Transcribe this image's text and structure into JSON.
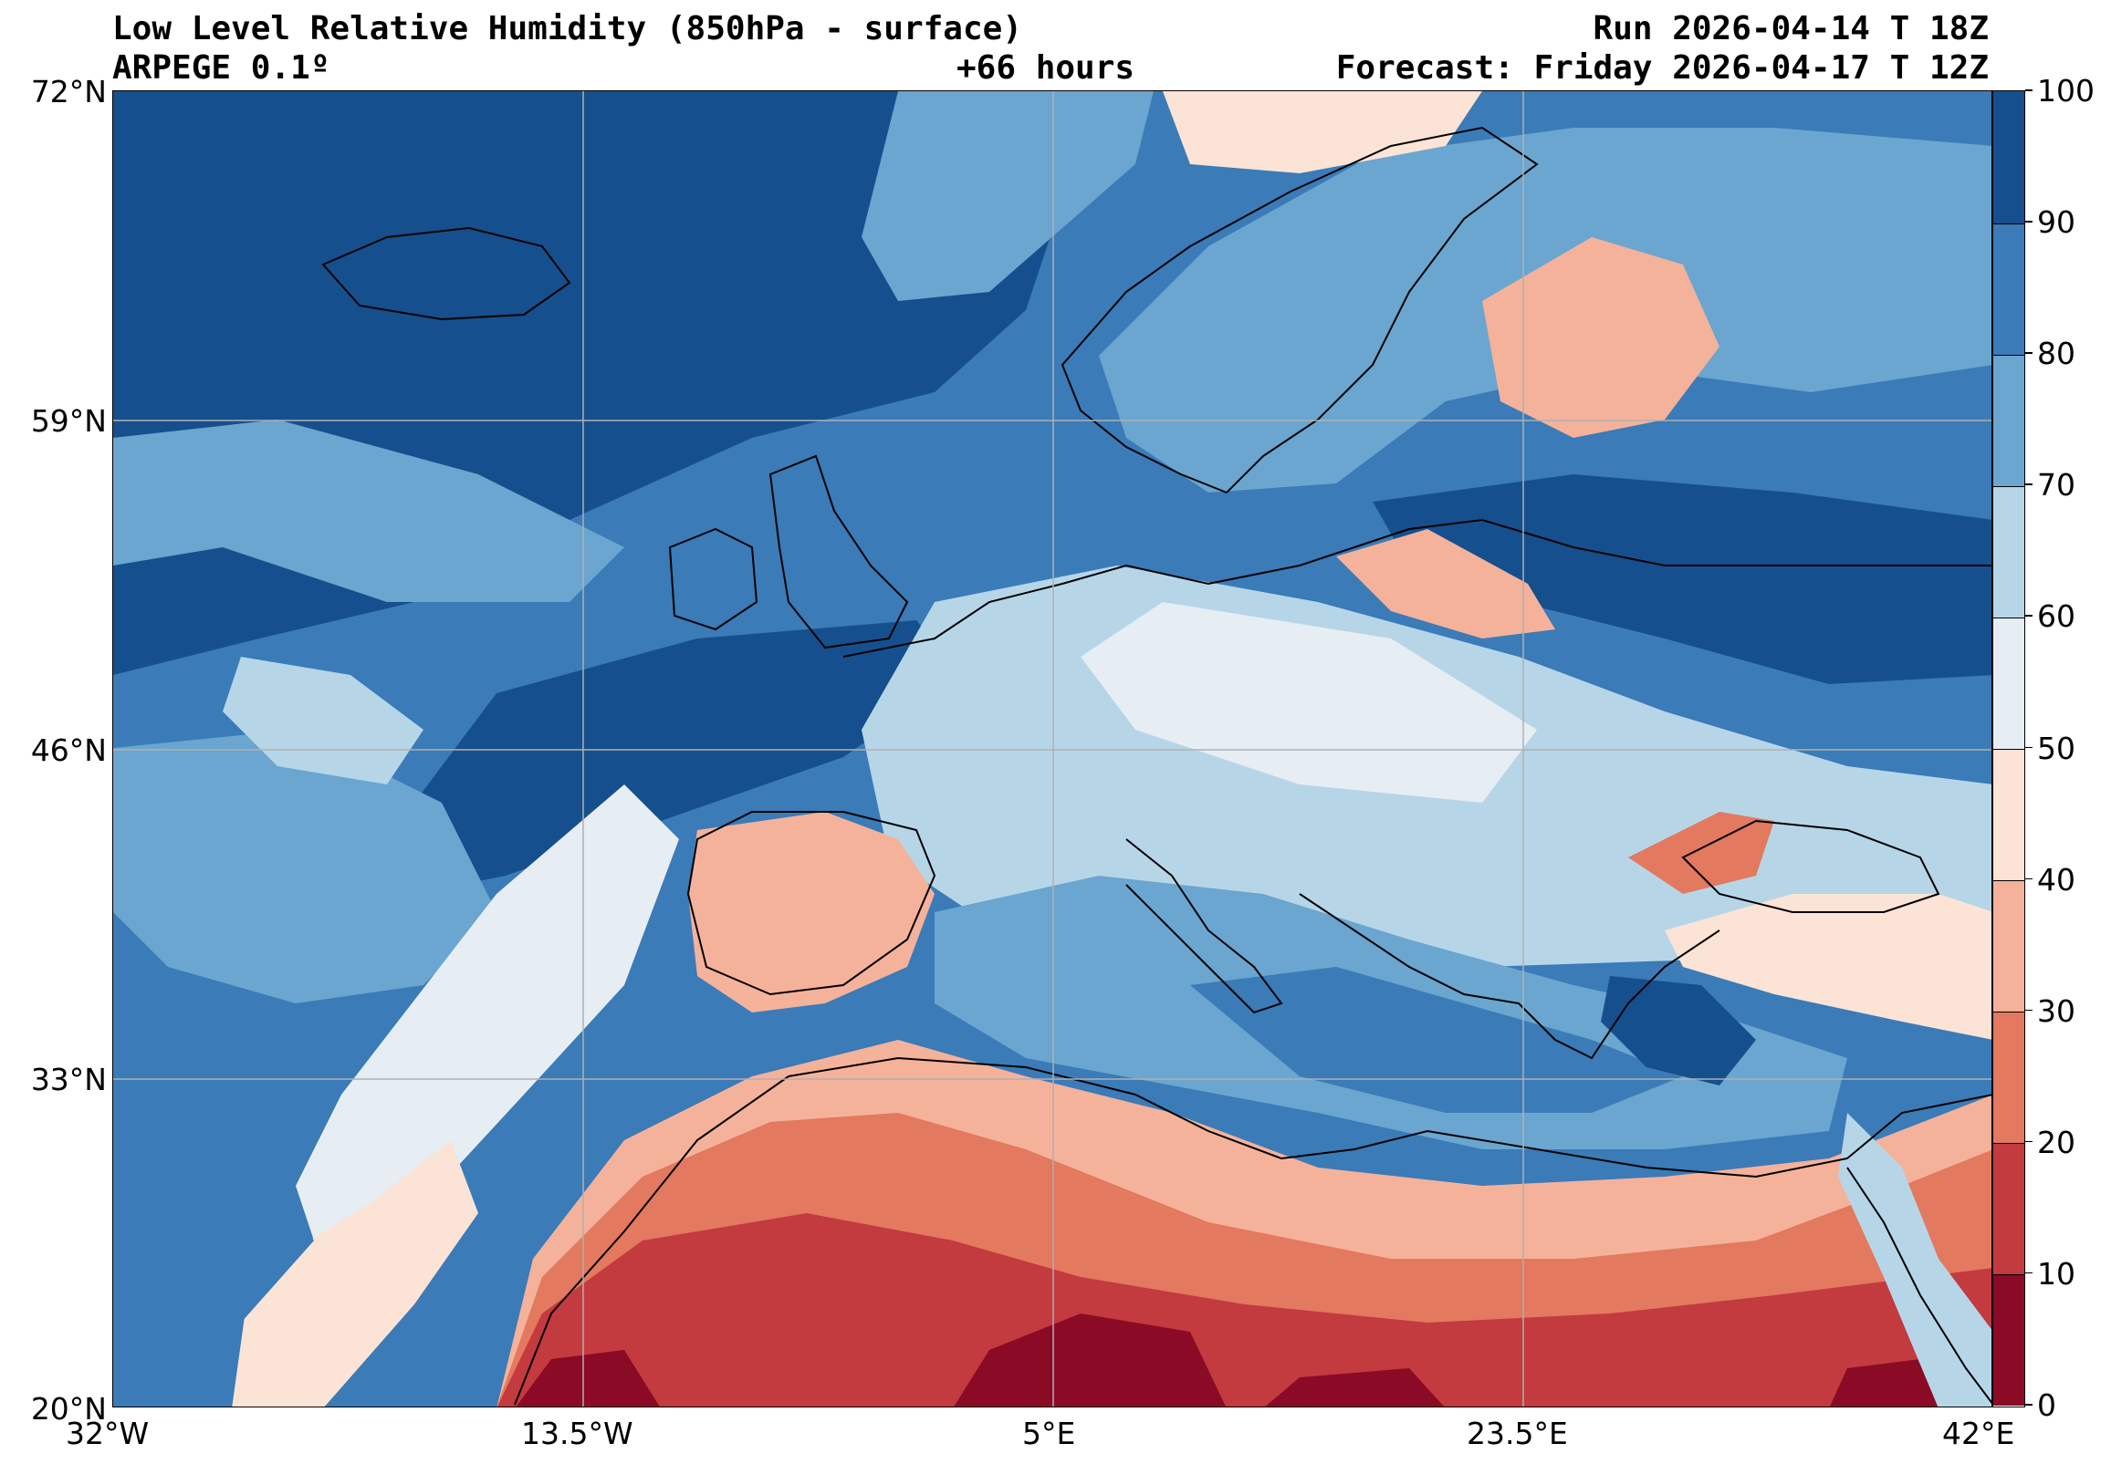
{
  "header": {
    "title": "Low Level Relative Humidity (850hPa - surface)",
    "model": "ARPEGE 0.1º",
    "lead_time": "+66 hours",
    "run": "Run 2026-04-14 T 18Z",
    "forecast": "Forecast: Friday 2026-04-17 T 12Z"
  },
  "map": {
    "lon_range": [
      -32,
      42
    ],
    "lat_range": [
      20,
      72
    ],
    "lon_ticks": [
      "32°W",
      "13.5°W",
      "5°E",
      "23.5°E",
      "42°E"
    ],
    "lat_ticks": [
      "72°N",
      "59°N",
      "46°N",
      "33°N",
      "20°N"
    ],
    "gridlines": true
  },
  "colorbar": {
    "variable": "relative humidity",
    "levels": [
      "0",
      "10",
      "20",
      "30",
      "40",
      "50",
      "60",
      "70",
      "80",
      "90",
      "100"
    ],
    "colors": [
      "#8b0a26",
      "#c33a3f",
      "#e3795e",
      "#f5b29a",
      "#fbe3d6",
      "#e6eef4",
      "#b6d6e8",
      "#6aa6cf",
      "#3a7bb8",
      "#164f8d"
    ]
  }
}
